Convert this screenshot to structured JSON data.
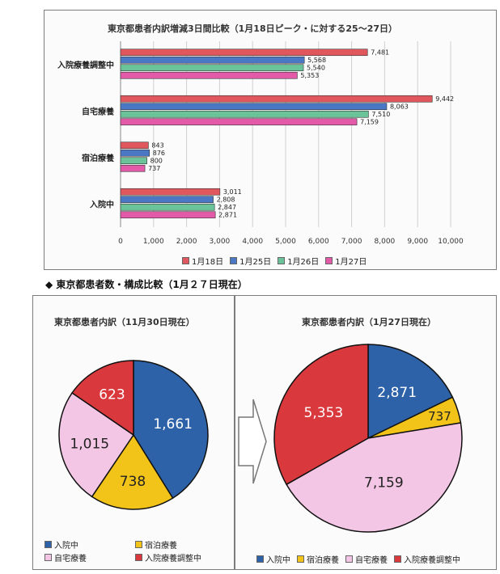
{
  "bar_chart": {
    "title": "東京都患者内訳増減3日間比較（1月18日ピーク・に対する25〜27日）",
    "colors": [
      "#e0585e",
      "#4b78c4",
      "#6bc39a",
      "#e25aa8"
    ],
    "legend": [
      "1月18日",
      "1月25日",
      "1月26日",
      "1月27日"
    ]
  },
  "section_heading": "◆ 東京都患者数・構成比較（1月２７日現在）",
  "pie_left": {
    "title": "東京都患者内訳（11月30日現在）",
    "legend": [
      "入院中",
      "宿泊療養",
      "自宅療養",
      "入院療養調整中"
    ]
  },
  "pie_right": {
    "title": "東京都患者内訳（1月27日現在）",
    "legend": [
      "入院中",
      "宿泊療養",
      "自宅療養",
      "入院療養調整中"
    ]
  },
  "pie_colors": [
    "#2e62a8",
    "#f2c318",
    "#f3c6e6",
    "#d9383d"
  ],
  "chart_data": [
    {
      "type": "bar",
      "orientation": "horizontal",
      "title": "東京都患者内訳増減3日間比較（1月18日ピーク・に対する25〜27日）",
      "categories": [
        "入院療養調整中",
        "自宅療養",
        "宿泊療養",
        "入院中"
      ],
      "series": [
        {
          "name": "1月18日",
          "values": [
            7481,
            9442,
            843,
            3011
          ]
        },
        {
          "name": "1月25日",
          "values": [
            5568,
            8063,
            876,
            2808
          ]
        },
        {
          "name": "1月26日",
          "values": [
            5540,
            7510,
            800,
            2847
          ]
        },
        {
          "name": "1月27日",
          "values": [
            5353,
            7159,
            737,
            2871
          ]
        }
      ],
      "value_labels": [
        [
          "7,481",
          "9,442",
          "843",
          "3,011"
        ],
        [
          "5,568",
          "8,063",
          "876",
          "2,808"
        ],
        [
          "5,540",
          "7,510",
          "800",
          "2,847"
        ],
        [
          "5,353",
          "7,159",
          "737",
          "2,871"
        ]
      ],
      "xlim": [
        0,
        10000
      ],
      "xticks": [
        "0",
        "1,000",
        "2,000",
        "3,000",
        "4,000",
        "5,000",
        "6,000",
        "7,000",
        "8,000",
        "9,000",
        "10,000"
      ],
      "grid": true,
      "legend_position": "bottom"
    },
    {
      "type": "pie",
      "title": "東京都患者内訳（11月30日現在）",
      "labels": [
        "入院中",
        "宿泊療養",
        "自宅療養",
        "入院療養調整中"
      ],
      "values": [
        1661,
        738,
        1015,
        623
      ],
      "value_labels": [
        "1,661",
        "738",
        "1,015",
        "623"
      ],
      "legend_position": "bottom"
    },
    {
      "type": "pie",
      "title": "東京都患者内訳（1月27日現在）",
      "labels": [
        "入院中",
        "宿泊療養",
        "自宅療養",
        "入院療養調整中"
      ],
      "values": [
        2871,
        737,
        7159,
        5353
      ],
      "value_labels": [
        "2,871",
        "737",
        "7,159",
        "5,353"
      ],
      "legend_position": "bottom"
    }
  ]
}
